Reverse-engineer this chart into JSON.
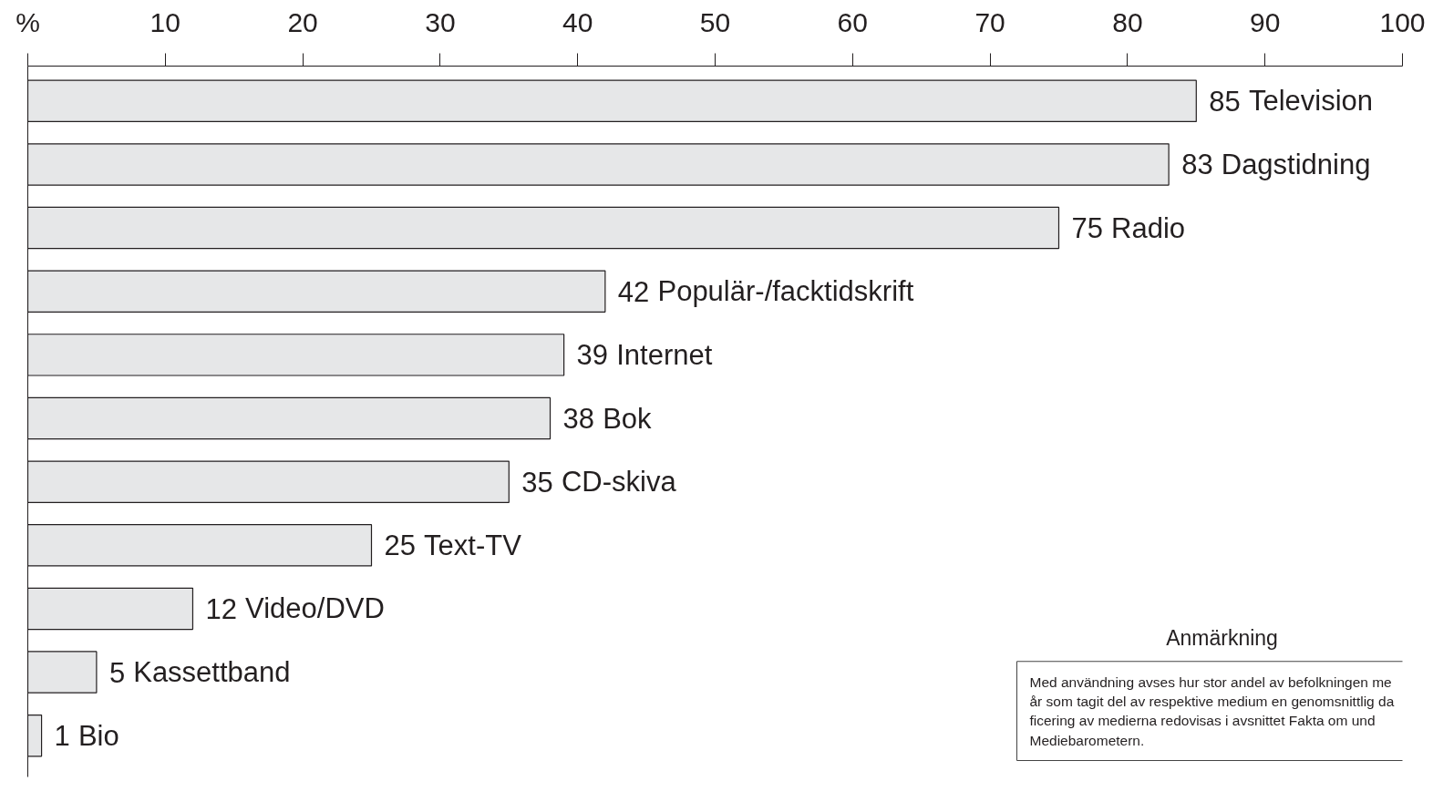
{
  "chart_data": {
    "type": "bar",
    "orientation": "horizontal",
    "data_labels": true,
    "grid": false,
    "tick_labels": "x",
    "categories": [
      "Television",
      "Dagstidning",
      "Radio",
      " Populär-/facktidskrift",
      "Internet",
      "Bok",
      "CD-skiva",
      "Text-TV",
      "Video/DVD",
      "Kassettband",
      "Bio"
    ],
    "values": [
      85,
      83,
      75,
      42,
      39,
      38,
      35,
      25,
      12,
      5,
      1
    ],
    "color": "#e6e7e8",
    "xlim": [
      0,
      100
    ],
    "xticks": [
      {
        "value": 0,
        "label": "%"
      },
      10,
      20,
      30,
      40,
      50,
      60,
      70,
      80,
      90,
      100
    ],
    "annotations": [
      "Anmärkning",
      "Med användning avses hur stor andel av befolkningen me\når som tagit del av respektive medium en genomsnittlig da\nficering av medierna redovisas i avsnittet Fakta om und\nMediebarometern."
    ]
  }
}
